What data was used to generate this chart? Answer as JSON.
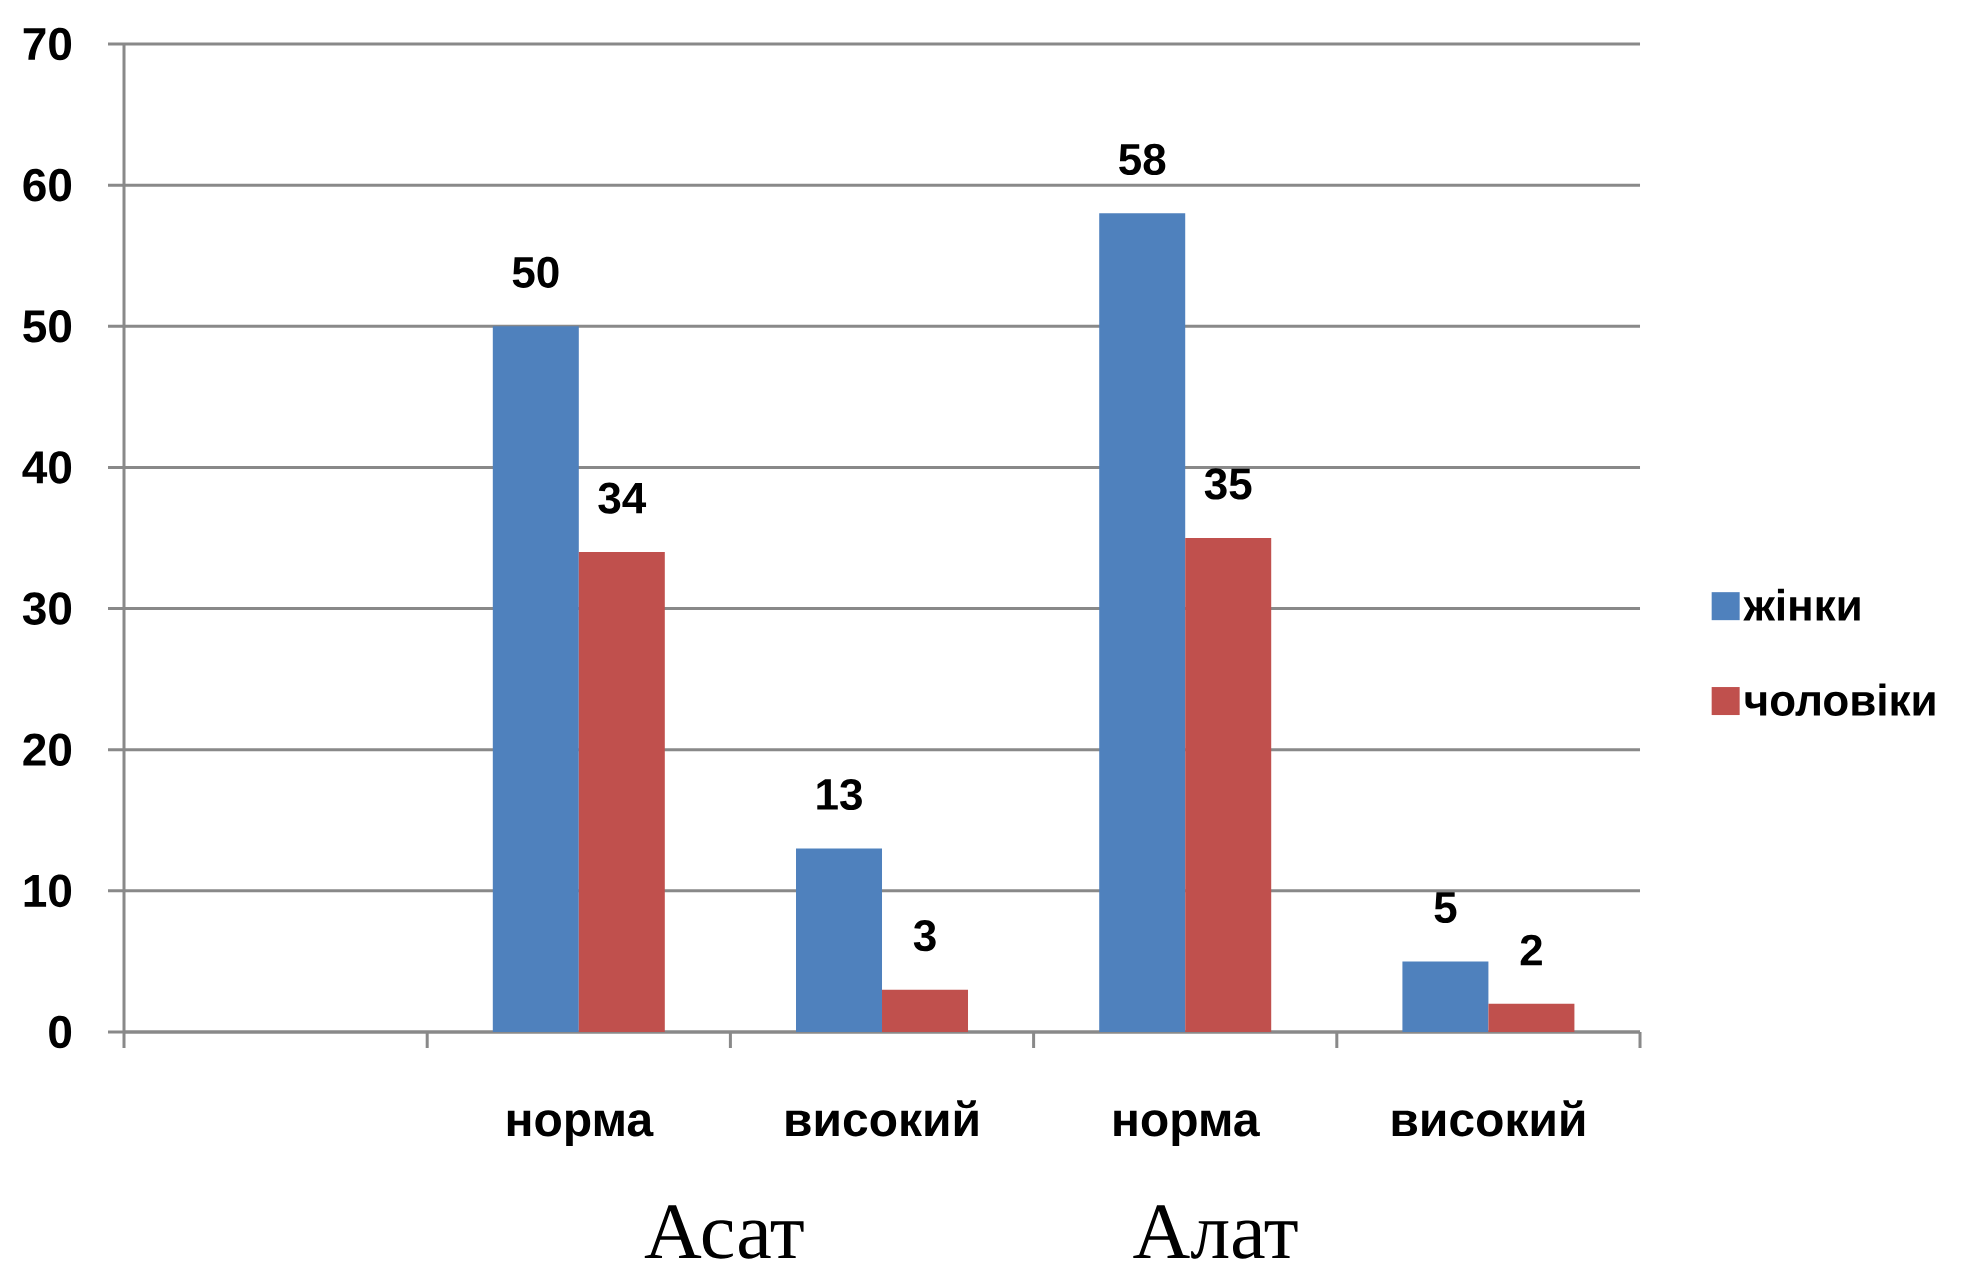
{
  "chart_data": {
    "type": "bar",
    "categories": [
      null,
      "норма",
      "високий",
      "норма",
      "високий"
    ],
    "series": [
      {
        "name": "жінки",
        "color": "#4f81bd",
        "values": [
          null,
          50,
          13,
          58,
          5
        ]
      },
      {
        "name": "чоловіки",
        "color": "#c0504d",
        "values": [
          null,
          34,
          3,
          35,
          2
        ]
      }
    ],
    "ylim": [
      0,
      70
    ],
    "yticks": [
      0,
      10,
      20,
      30,
      40,
      50,
      60,
      70
    ],
    "grid": "y",
    "legend": "right",
    "data_labels": true,
    "annotations": [
      "Асат",
      "Алат"
    ]
  }
}
